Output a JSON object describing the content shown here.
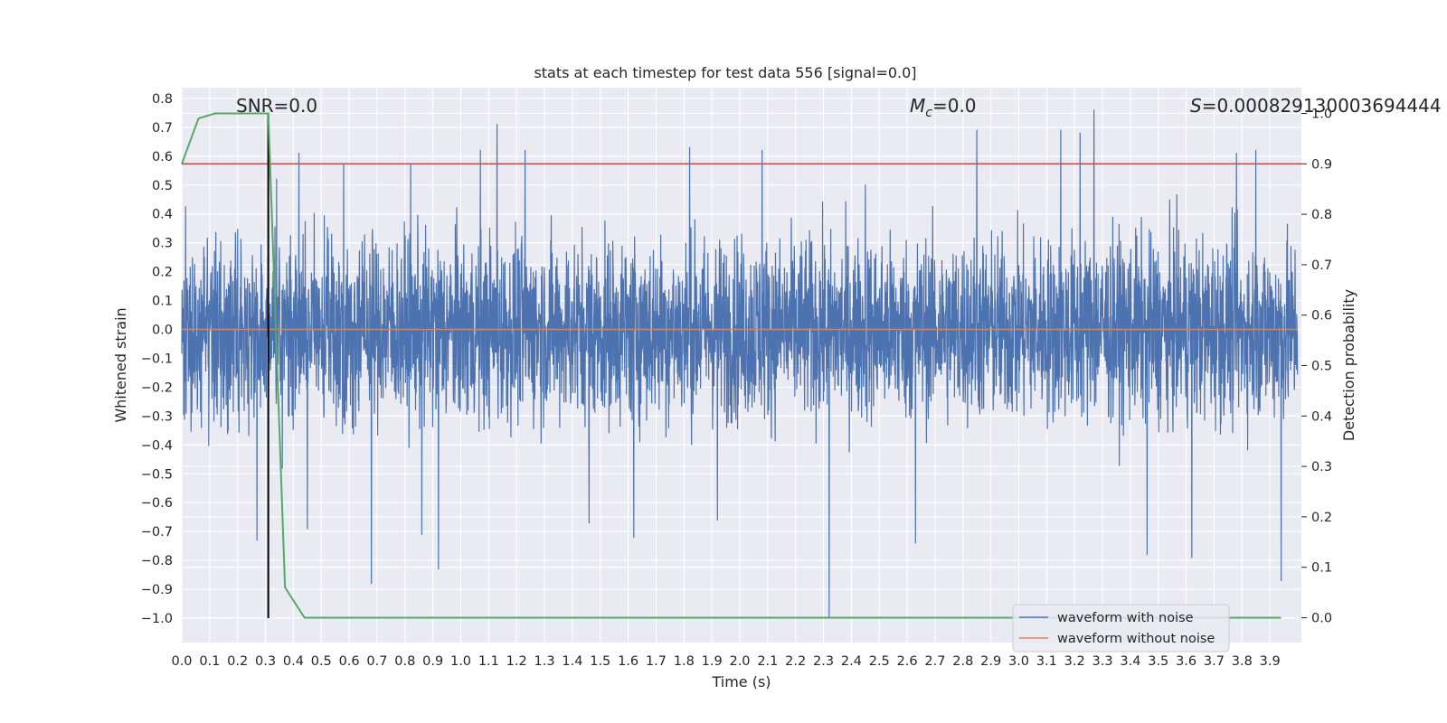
{
  "chart_data": {
    "type": "line",
    "title": "stats at each timestep for test data 556 [signal=0.0]",
    "xlabel": "Time (s)",
    "ylabel": "Whitened strain",
    "y2label": "Detection probability",
    "xlim": [
      0.0,
      4.0
    ],
    "ylim": [
      -1.1,
      0.83
    ],
    "y2lim": [
      -0.05,
      1.05
    ],
    "x_ticks": [
      "0.0",
      "0.1",
      "0.2",
      "0.3",
      "0.4",
      "0.5",
      "0.6",
      "0.7",
      "0.8",
      "0.9",
      "1.0",
      "1.1",
      "1.2",
      "1.3",
      "1.4",
      "1.5",
      "1.6",
      "1.7",
      "1.8",
      "1.9",
      "2.0",
      "2.1",
      "2.2",
      "2.3",
      "2.4",
      "2.5",
      "2.6",
      "2.7",
      "2.8",
      "2.9",
      "3.0",
      "3.1",
      "3.2",
      "3.3",
      "3.4",
      "3.5",
      "3.6",
      "3.7",
      "3.8",
      "3.9"
    ],
    "y_ticks": [
      "0.8",
      "0.7",
      "0.6",
      "0.5",
      "0.4",
      "0.3",
      "0.2",
      "0.1",
      "0.0",
      "−0.1",
      "−0.2",
      "−0.3",
      "−0.4",
      "−0.5",
      "−0.6",
      "−0.7",
      "−0.8",
      "−0.9",
      "−1.0"
    ],
    "y2_ticks": [
      "1.0",
      "0.9",
      "0.8",
      "0.7",
      "0.6",
      "0.5",
      "0.4",
      "0.3",
      "0.2",
      "0.1",
      "0.0"
    ],
    "grid": true,
    "legend_position": "bottom-right",
    "annotations": {
      "snr": "SNR=0.0",
      "mc": "M",
      "mc_sub": "c",
      "mc_value": "=0.0",
      "s": "S",
      "s_value": "=0.000829130003694444"
    },
    "series": [
      {
        "name": "waveform with noise",
        "color": "#4c72b0",
        "axis": "left",
        "kind": "dense-noise",
        "n_points": 4096,
        "envelope_typical": [
          -0.45,
          0.5
        ],
        "peaks": [
          {
            "x": 0.27,
            "y": -0.73
          },
          {
            "x": 0.34,
            "y": 0.52
          },
          {
            "x": 0.36,
            "y": -0.48
          },
          {
            "x": 0.42,
            "y": 0.61
          },
          {
            "x": 0.45,
            "y": -0.69
          },
          {
            "x": 0.58,
            "y": 0.57
          },
          {
            "x": 0.68,
            "y": -0.88
          },
          {
            "x": 0.82,
            "y": 0.57
          },
          {
            "x": 0.86,
            "y": -0.71
          },
          {
            "x": 0.92,
            "y": -0.83
          },
          {
            "x": 1.07,
            "y": 0.62
          },
          {
            "x": 1.13,
            "y": 0.71
          },
          {
            "x": 1.23,
            "y": 0.62
          },
          {
            "x": 1.46,
            "y": -0.67
          },
          {
            "x": 1.62,
            "y": -0.72
          },
          {
            "x": 1.82,
            "y": 0.63
          },
          {
            "x": 1.92,
            "y": -0.66
          },
          {
            "x": 2.08,
            "y": 0.62
          },
          {
            "x": 2.32,
            "y": -1.0
          },
          {
            "x": 2.45,
            "y": 0.5
          },
          {
            "x": 2.63,
            "y": -0.74
          },
          {
            "x": 2.85,
            "y": 0.69
          },
          {
            "x": 3.15,
            "y": 0.69
          },
          {
            "x": 3.22,
            "y": 0.68
          },
          {
            "x": 3.27,
            "y": 0.76
          },
          {
            "x": 3.46,
            "y": -0.78
          },
          {
            "x": 3.62,
            "y": -0.79
          },
          {
            "x": 3.78,
            "y": 0.61
          },
          {
            "x": 3.85,
            "y": 0.62
          },
          {
            "x": 3.94,
            "y": -0.87
          }
        ]
      },
      {
        "name": "waveform without noise",
        "color": "#dd8452",
        "axis": "left",
        "x": [
          0.0,
          4.0
        ],
        "y": [
          0.0,
          0.0
        ]
      },
      {
        "color": "#55a868",
        "axis": "right",
        "x": [
          0.0,
          0.06,
          0.12,
          0.18,
          0.24,
          0.31,
          0.37,
          0.44,
          0.5,
          3.94
        ],
        "y": [
          0.9,
          0.99,
          1.0,
          1.0,
          1.0,
          1.0,
          0.06,
          0.0,
          0.0,
          0.0
        ]
      }
    ],
    "reference_lines": [
      {
        "orientation": "horizontal",
        "axis": "right",
        "value": 0.9,
        "color": "#c44e52"
      },
      {
        "orientation": "vertical",
        "value": 0.31,
        "y_range": [
          -1.0,
          0.75
        ],
        "color": "#000000"
      }
    ]
  }
}
